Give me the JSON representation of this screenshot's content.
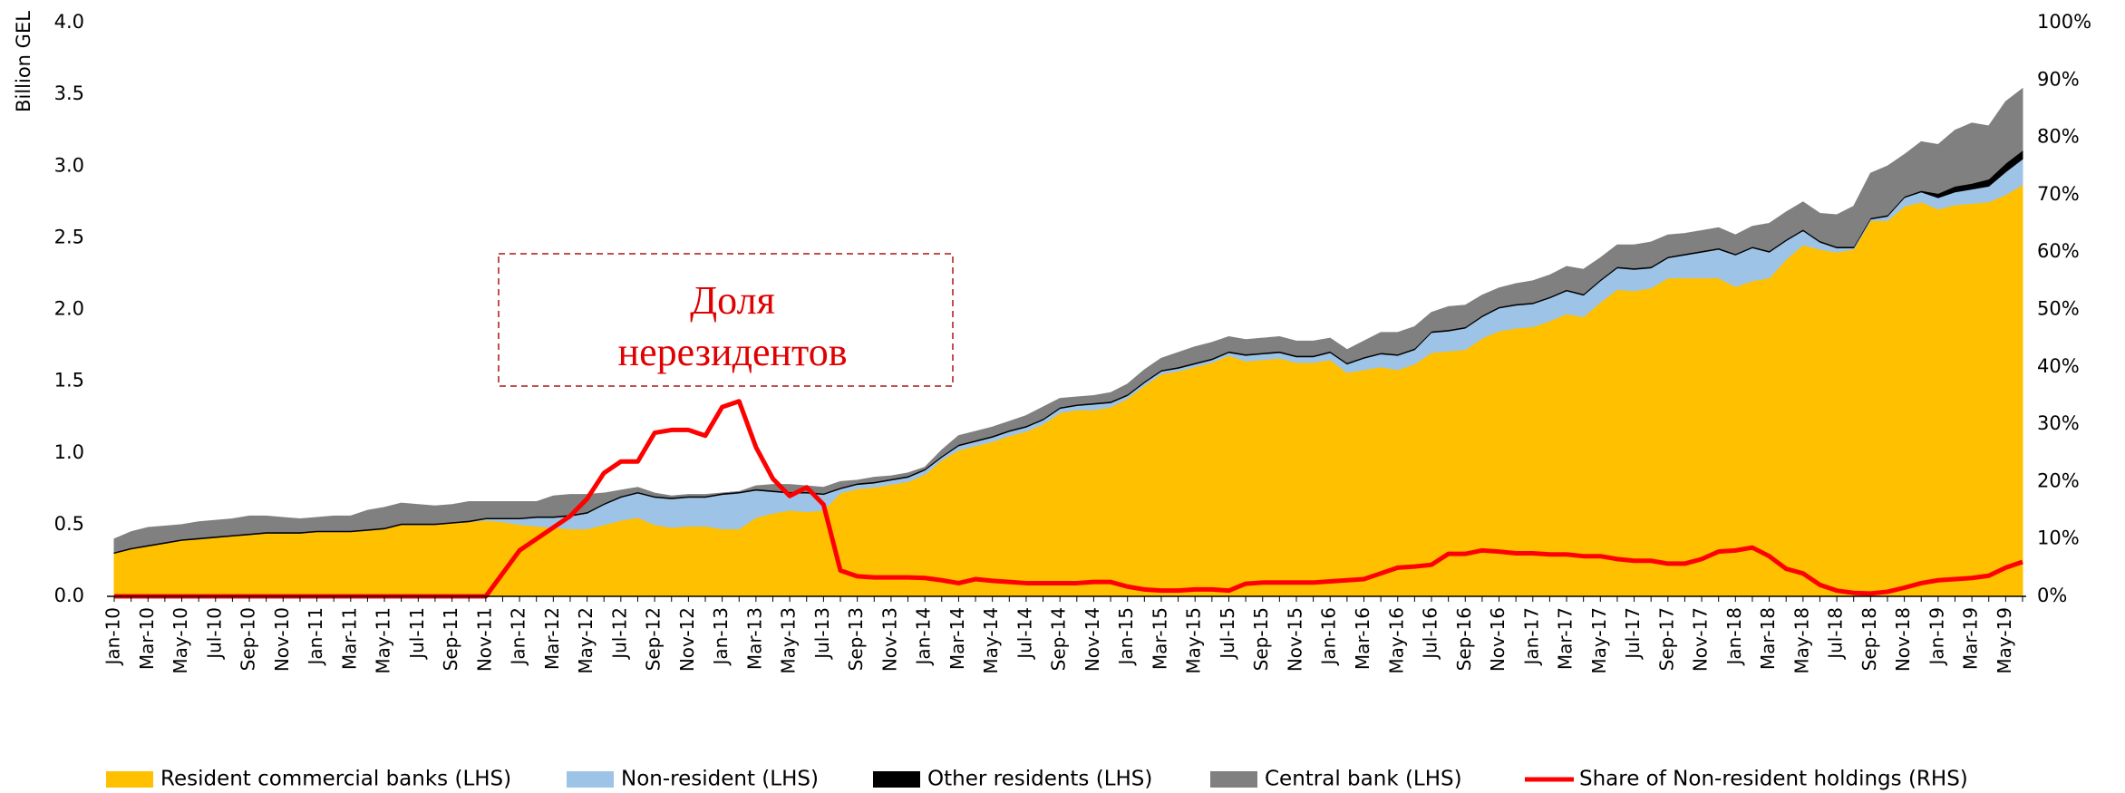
{
  "chart_data": {
    "type": "area",
    "stacked": true,
    "y_label": "Billion GEL",
    "annotation": [
      "Доля",
      "нерезидентов"
    ],
    "categories": [
      "Jan-10",
      null,
      "Mar-10",
      null,
      "May-10",
      null,
      "Jul-10",
      null,
      "Sep-10",
      null,
      "Nov-10",
      null,
      "Jan-11",
      null,
      "Mar-11",
      null,
      "May-11",
      null,
      "Jul-11",
      null,
      "Sep-11",
      null,
      "Nov-11",
      null,
      "Jan-12",
      null,
      "Mar-12",
      null,
      "May-12",
      null,
      "Jul-12",
      null,
      "Sep-12",
      null,
      "Nov-12",
      null,
      "Jan-13",
      null,
      "Mar-13",
      null,
      "May-13",
      null,
      "Jul-13",
      null,
      "Sep-13",
      null,
      "Nov-13",
      null,
      "Jan-14",
      null,
      "Mar-14",
      null,
      "May-14",
      null,
      "Jul-14",
      null,
      "Sep-14",
      null,
      "Nov-14",
      null,
      "Jan-15",
      null,
      "Mar-15",
      null,
      "May-15",
      null,
      "Jul-15",
      null,
      "Sep-15",
      null,
      "Nov-15",
      null,
      "Jan-16",
      null,
      "Mar-16",
      null,
      "May-16",
      null,
      "Jul-16",
      null,
      "Sep-16",
      null,
      "Nov-16",
      null,
      "Jan-17",
      null,
      "Mar-17",
      null,
      "May-17",
      null,
      "Jul-17",
      null,
      "Sep-17",
      null,
      "Nov-17",
      null,
      "Jan-18",
      null,
      "Mar-18",
      null,
      "May-18",
      null,
      "Jul-18",
      null,
      "Sep-18",
      null,
      "Nov-18",
      null,
      "Jan-19",
      null,
      "Mar-19",
      null,
      "May-19",
      null
    ],
    "series": [
      {
        "name": "Resident commercial banks (LHS)",
        "color": "#FFC000",
        "values": [
          0.3,
          0.33,
          0.35,
          0.37,
          0.39,
          0.4,
          0.41,
          0.42,
          0.43,
          0.44,
          0.44,
          0.44,
          0.45,
          0.45,
          0.45,
          0.46,
          0.47,
          0.5,
          0.5,
          0.5,
          0.51,
          0.52,
          0.53,
          0.52,
          0.5,
          0.49,
          0.48,
          0.47,
          0.47,
          0.5,
          0.53,
          0.55,
          0.5,
          0.48,
          0.49,
          0.49,
          0.47,
          0.47,
          0.55,
          0.58,
          0.6,
          0.59,
          0.6,
          0.72,
          0.75,
          0.76,
          0.78,
          0.8,
          0.85,
          0.95,
          1.02,
          1.05,
          1.08,
          1.12,
          1.15,
          1.2,
          1.28,
          1.3,
          1.3,
          1.32,
          1.38,
          1.47,
          1.55,
          1.57,
          1.6,
          1.63,
          1.68,
          1.64,
          1.65,
          1.66,
          1.63,
          1.63,
          1.65,
          1.56,
          1.58,
          1.6,
          1.58,
          1.62,
          1.7,
          1.71,
          1.72,
          1.8,
          1.85,
          1.87,
          1.88,
          1.92,
          1.97,
          1.95,
          2.05,
          2.14,
          2.13,
          2.15,
          2.22,
          2.22,
          2.22,
          2.22,
          2.16,
          2.2,
          2.22,
          2.35,
          2.45,
          2.42,
          2.4,
          2.42,
          2.62,
          2.62,
          2.72,
          2.75,
          2.7,
          2.73,
          2.74,
          2.75,
          2.8,
          2.87
        ]
      },
      {
        "name": "Non-resident (LHS)",
        "color": "#9DC3E6",
        "values": [
          0,
          0,
          0,
          0,
          0,
          0,
          0,
          0,
          0,
          0,
          0,
          0,
          0,
          0,
          0,
          0,
          0,
          0,
          0,
          0,
          0,
          0,
          0.01,
          0.02,
          0.04,
          0.06,
          0.07,
          0.09,
          0.11,
          0.14,
          0.16,
          0.17,
          0.19,
          0.2,
          0.2,
          0.2,
          0.24,
          0.25,
          0.19,
          0.15,
          0.12,
          0.13,
          0.11,
          0.03,
          0.03,
          0.03,
          0.03,
          0.03,
          0.03,
          0.02,
          0.03,
          0.03,
          0.03,
          0.03,
          0.03,
          0.03,
          0.03,
          0.03,
          0.04,
          0.03,
          0.02,
          0.02,
          0.02,
          0.02,
          0.02,
          0.02,
          0.02,
          0.04,
          0.04,
          0.04,
          0.04,
          0.04,
          0.05,
          0.06,
          0.08,
          0.09,
          0.1,
          0.1,
          0.14,
          0.14,
          0.15,
          0.15,
          0.16,
          0.16,
          0.16,
          0.16,
          0.16,
          0.15,
          0.15,
          0.15,
          0.15,
          0.14,
          0.14,
          0.16,
          0.18,
          0.2,
          0.22,
          0.23,
          0.18,
          0.13,
          0.1,
          0.05,
          0.03,
          0.01,
          0.01,
          0.03,
          0.06,
          0.07,
          0.08,
          0.09,
          0.1,
          0.11,
          0.16,
          0.18
        ]
      },
      {
        "name": "Other residents (LHS)",
        "color": "#000000",
        "values": [
          0.01,
          0.01,
          0.01,
          0.01,
          0.01,
          0.01,
          0.01,
          0.01,
          0.01,
          0.01,
          0.01,
          0.01,
          0.01,
          0.01,
          0.01,
          0.01,
          0.01,
          0.01,
          0.01,
          0.01,
          0.01,
          0.01,
          0.01,
          0.01,
          0.01,
          0.01,
          0.01,
          0.01,
          0.01,
          0.01,
          0.01,
          0.01,
          0.01,
          0.01,
          0.01,
          0.01,
          0.01,
          0.01,
          0.01,
          0.01,
          0.01,
          0.01,
          0.01,
          0.01,
          0.01,
          0.01,
          0.01,
          0.01,
          0.01,
          0.01,
          0.01,
          0.01,
          0.01,
          0.01,
          0.01,
          0.01,
          0.01,
          0.01,
          0.01,
          0.01,
          0.01,
          0.01,
          0.01,
          0.01,
          0.01,
          0.01,
          0.01,
          0.01,
          0.01,
          0.01,
          0.01,
          0.01,
          0.01,
          0.01,
          0.01,
          0.01,
          0.01,
          0.01,
          0.01,
          0.01,
          0.01,
          0.01,
          0.01,
          0.01,
          0.01,
          0.01,
          0.01,
          0.01,
          0.01,
          0.01,
          0.01,
          0.01,
          0.01,
          0.01,
          0.01,
          0.01,
          0.01,
          0.01,
          0.01,
          0.01,
          0.01,
          0.01,
          0.01,
          0.01,
          0.01,
          0.01,
          0.01,
          0.01,
          0.03,
          0.04,
          0.04,
          0.05,
          0.06,
          0.06
        ]
      },
      {
        "name": "Central bank (LHS)",
        "color": "#808080",
        "values": [
          0.09,
          0.11,
          0.12,
          0.11,
          0.1,
          0.11,
          0.11,
          0.11,
          0.12,
          0.11,
          0.1,
          0.09,
          0.09,
          0.1,
          0.1,
          0.13,
          0.14,
          0.14,
          0.13,
          0.12,
          0.12,
          0.13,
          0.11,
          0.11,
          0.11,
          0.1,
          0.14,
          0.14,
          0.12,
          0.07,
          0.04,
          0.03,
          0.02,
          0.01,
          0.01,
          0.01,
          0.0,
          0.0,
          0.02,
          0.04,
          0.05,
          0.04,
          0.04,
          0.04,
          0.02,
          0.03,
          0.02,
          0.02,
          0.01,
          0.04,
          0.06,
          0.06,
          0.06,
          0.06,
          0.07,
          0.08,
          0.06,
          0.05,
          0.05,
          0.06,
          0.07,
          0.08,
          0.08,
          0.1,
          0.11,
          0.11,
          0.1,
          0.1,
          0.1,
          0.1,
          0.1,
          0.1,
          0.09,
          0.09,
          0.11,
          0.14,
          0.15,
          0.15,
          0.13,
          0.16,
          0.15,
          0.14,
          0.13,
          0.14,
          0.15,
          0.15,
          0.16,
          0.17,
          0.15,
          0.15,
          0.16,
          0.17,
          0.15,
          0.14,
          0.14,
          0.14,
          0.13,
          0.14,
          0.19,
          0.19,
          0.19,
          0.19,
          0.22,
          0.28,
          0.31,
          0.34,
          0.29,
          0.34,
          0.34,
          0.39,
          0.42,
          0.37,
          0.43,
          0.43
        ]
      },
      {
        "name": "Share of Non-resident holdings (RHS)",
        "color": "#FF0000",
        "type": "line",
        "axis": "y2",
        "values": [
          0,
          0,
          0,
          0,
          0,
          0,
          0,
          0,
          0,
          0,
          0,
          0,
          0,
          0,
          0,
          0,
          0,
          0,
          0,
          0,
          0,
          0,
          0,
          4,
          8,
          10,
          12,
          14,
          17,
          21.5,
          23.5,
          23.5,
          28.5,
          29,
          29,
          28,
          33,
          34,
          26,
          20.5,
          17.5,
          19,
          16,
          4.5,
          3.5,
          3.3,
          3.3,
          3.3,
          3.2,
          2.8,
          2.3,
          3,
          2.7,
          2.5,
          2.3,
          2.3,
          2.3,
          2.3,
          2.5,
          2.5,
          1.7,
          1.2,
          1,
          1,
          1.2,
          1.2,
          1,
          2.2,
          2.4,
          2.4,
          2.4,
          2.4,
          2.6,
          2.8,
          3,
          4,
          5,
          5.2,
          5.5,
          7.4,
          7.4,
          8,
          7.8,
          7.5,
          7.5,
          7.3,
          7.3,
          7,
          7,
          6.5,
          6.2,
          6.2,
          5.7,
          5.7,
          6.5,
          7.8,
          8,
          8.5,
          7,
          4.8,
          4,
          2,
          1,
          0.6,
          0.5,
          0.8,
          1.5,
          2.3,
          2.8,
          3,
          3.2,
          3.6,
          5,
          6
        ]
      }
    ],
    "ylim": [
      0,
      4
    ],
    "yticks": [
      {
        "value": 0,
        "label": "0.0"
      },
      0.5,
      {
        "value": 1,
        "label": "1.0"
      },
      1.5,
      {
        "value": 2,
        "label": "2.0"
      },
      2.5,
      {
        "value": 3,
        "label": "3.0"
      },
      3.5,
      {
        "value": 4,
        "label": "4.0"
      }
    ],
    "y2lim": [
      0,
      100
    ],
    "y2ticks": [
      {
        "value": 0,
        "label": "0%"
      },
      {
        "value": 10,
        "label": "10%"
      },
      {
        "value": 20,
        "label": "20%"
      },
      {
        "value": 30,
        "label": "30%"
      },
      {
        "value": 40,
        "label": "40%"
      },
      {
        "value": 50,
        "label": "50%"
      },
      {
        "value": 60,
        "label": "60%"
      },
      {
        "value": 70,
        "label": "70%"
      },
      {
        "value": 80,
        "label": "80%"
      },
      {
        "value": 90,
        "label": "90%"
      },
      {
        "value": 100,
        "label": "100%"
      }
    ],
    "grid": false,
    "legend": "bottom"
  }
}
